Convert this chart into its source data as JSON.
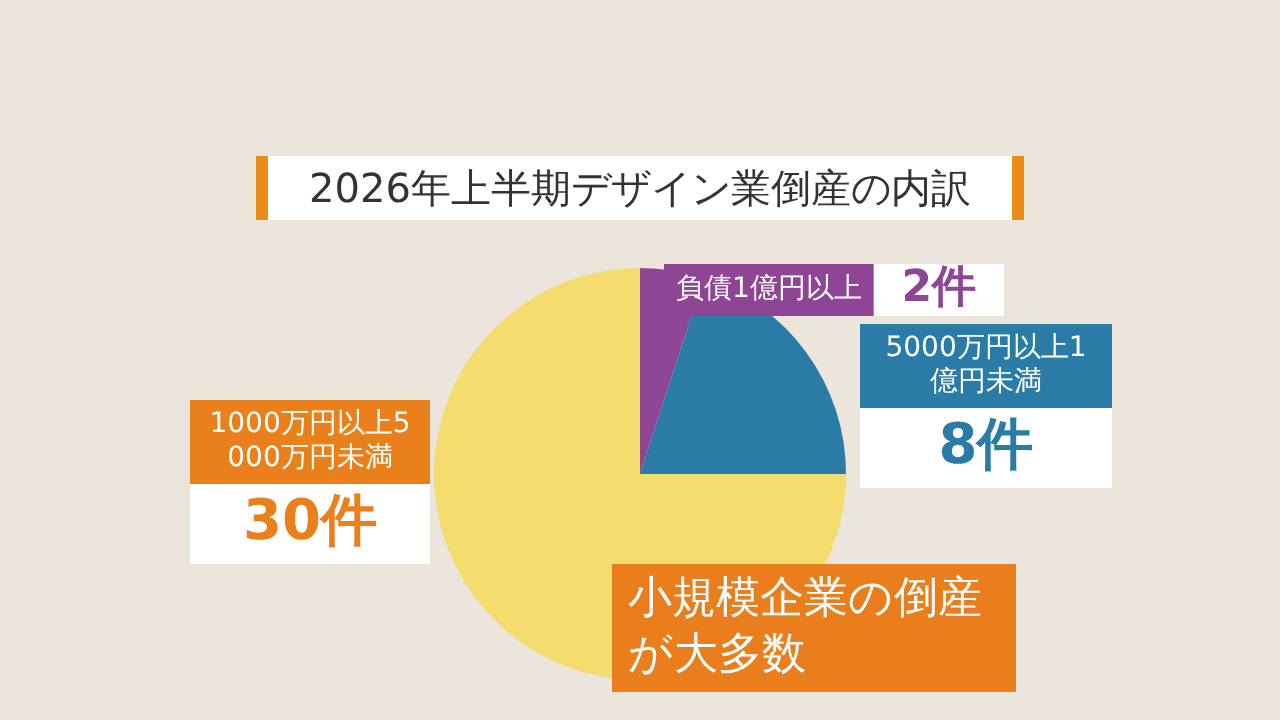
{
  "chart_data": {
    "type": "pie",
    "title": "2026年上半期デザイン業倒産の内訳",
    "categories": [
      "負債1億円以上",
      "5000万円以上1億円未満",
      "1000万円以上5000万円未満"
    ],
    "values": [
      2,
      8,
      30
    ],
    "colors": [
      "#8e4596",
      "#2a7ba6",
      "#f4dc6e"
    ],
    "value_labels": [
      "2件",
      "8件",
      "30件"
    ],
    "legend": false,
    "annotations": [
      "小規模企業の倒産が大多数"
    ]
  }
}
